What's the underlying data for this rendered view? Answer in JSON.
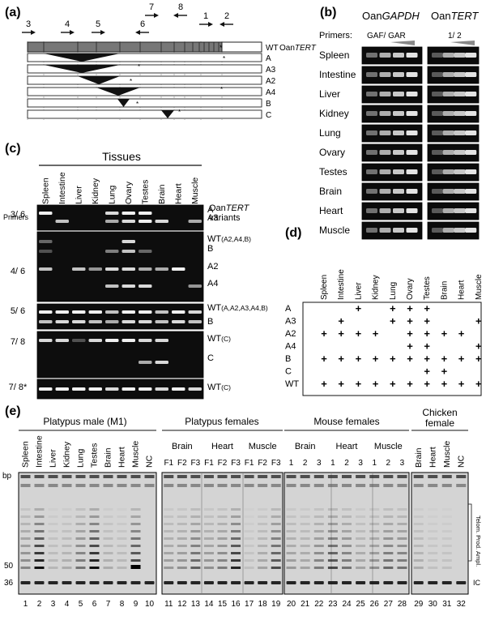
{
  "panel_labels": {
    "a": "(a)",
    "b": "(b)",
    "c": "(c)",
    "d": "(d)",
    "e": "(e)"
  },
  "panel_a": {
    "primers": [
      "3",
      "4",
      "5",
      "6",
      "7",
      "8",
      "1",
      "2"
    ],
    "wt_label": "WT",
    "gene_label_prefix": "Oan",
    "gene_label_suffix": "TERT",
    "variants": [
      "A",
      "A3",
      "A2",
      "A4",
      "B",
      "C"
    ],
    "stop_mark": "*"
  },
  "panel_b": {
    "gene1_prefix": "Oan",
    "gene1_suffix": "GAPDH",
    "gene2_prefix": "Oan",
    "gene2_suffix": "TERT",
    "primers_label": "Primers:",
    "primer_set1": "GAF/ GAR",
    "primer_set2": "1/ 2",
    "tissues": [
      "Spleen",
      "Intestine",
      "Liver",
      "Kidney",
      "Lung",
      "Ovary",
      "Testes",
      "Brain",
      "Heart",
      "Muscle"
    ]
  },
  "panel_c": {
    "title": "Tissues",
    "tissues": [
      "Spleen",
      "Intestine",
      "Liver",
      "Kidney",
      "Lung",
      "Ovary",
      "Testes",
      "Brain",
      "Heart",
      "Muscle"
    ],
    "variants_header_line1_prefix": "Oan",
    "variants_header_line1_suffix": "TERT",
    "variants_header_line2": "variants",
    "primers_label": "Primers",
    "rows": [
      {
        "primer": "3/ 6",
        "bands": [
          {
            "label": "A"
          },
          {
            "label": "A3"
          }
        ]
      },
      {
        "primer": "4/ 6",
        "bands": [
          {
            "label": "WT",
            "sub": "(A2,A4,B)"
          },
          {
            "label": "B"
          },
          {
            "label": "A2"
          },
          {
            "label": "A4"
          }
        ]
      },
      {
        "primer": "5/ 6",
        "bands": [
          {
            "label": "WT",
            "sub": "(A,A2,A3,A4,B)"
          },
          {
            "label": "B"
          }
        ]
      },
      {
        "primer": "7/ 8",
        "bands": [
          {
            "label": "WT",
            "sub": "(C)"
          },
          {
            "label": "C"
          }
        ]
      },
      {
        "primer": "7/ 8*",
        "bands": [
          {
            "label": "WT",
            "sub": "(C)"
          }
        ]
      }
    ]
  },
  "panel_d": {
    "tissues": [
      "Spleen",
      "Intestine",
      "Liver",
      "Kidney",
      "Lung",
      "Ovary",
      "Testes",
      "Brain",
      "Heart",
      "Muscle"
    ],
    "variants": [
      "A",
      "A3",
      "A2",
      "A4",
      "B",
      "C",
      "WT"
    ],
    "mark": "+",
    "matrix": [
      [
        0,
        0,
        1,
        0,
        1,
        1,
        1,
        0,
        0,
        0
      ],
      [
        0,
        1,
        0,
        0,
        1,
        1,
        1,
        0,
        0,
        1
      ],
      [
        1,
        1,
        1,
        1,
        0,
        1,
        1,
        1,
        1,
        0
      ],
      [
        0,
        0,
        0,
        0,
        0,
        1,
        1,
        0,
        0,
        1
      ],
      [
        1,
        1,
        1,
        1,
        1,
        1,
        1,
        1,
        1,
        1
      ],
      [
        0,
        0,
        0,
        0,
        0,
        0,
        1,
        1,
        0,
        0
      ],
      [
        1,
        1,
        1,
        1,
        1,
        1,
        1,
        1,
        1,
        1
      ]
    ]
  },
  "panel_e": {
    "bp_label": "bp",
    "bp_50": "50",
    "bp_36": "36",
    "group1_title": "Platypus  male  (M1)",
    "group1_lanes": [
      "Spleen",
      "Intestine",
      "Liver",
      "Kidney",
      "Lung",
      "Testes",
      "Brain",
      "Heart",
      "Muscle",
      "NC"
    ],
    "group2_title": "Platypus  females",
    "group2_tissues": [
      "Brain",
      "Heart",
      "Muscle"
    ],
    "group2_sub": [
      "F1",
      "F2",
      "F3"
    ],
    "group3_title": "Mouse  females",
    "group3_tissues": [
      "Brain",
      "Heart",
      "Muscle"
    ],
    "group3_sub": [
      "1",
      "2",
      "3"
    ],
    "group4_title_line1": "Chicken",
    "group4_title_line2": "female",
    "group4_lanes": [
      "Brain",
      "Heart",
      "Muscle"
    ],
    "nc_label": "NC",
    "telom_prod_label": "Telom. Prod.",
    "ampl_label": "Ampl.",
    "ic_label": "IC",
    "lane_numbers": [
      "1",
      "2",
      "3",
      "4",
      "5",
      "6",
      "7",
      "8",
      "9",
      "10",
      "11",
      "12",
      "13",
      "14",
      "15",
      "16",
      "17",
      "18",
      "19",
      "20",
      "21",
      "22",
      "23",
      "24",
      "25",
      "26",
      "27",
      "28",
      "29",
      "30",
      "31",
      "32"
    ]
  }
}
